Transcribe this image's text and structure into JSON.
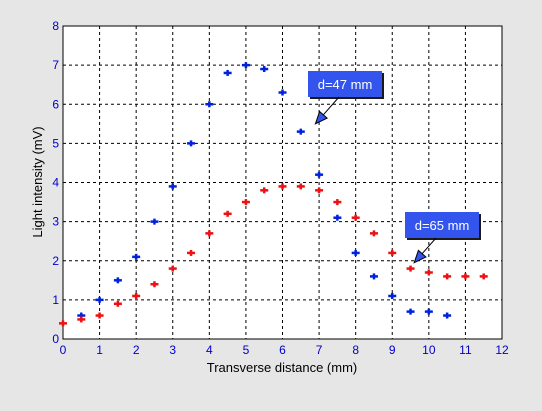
{
  "chart_data": {
    "type": "scatter",
    "xlabel": "Transverse distance (mm)",
    "ylabel": "Light intensity (mV)",
    "xlim": [
      0,
      12
    ],
    "ylim": [
      0,
      8
    ],
    "xticks": [
      "0",
      "1",
      "2",
      "3",
      "4",
      "5",
      "6",
      "7",
      "8",
      "9",
      "10",
      "11",
      "12"
    ],
    "yticks": [
      "0",
      "1",
      "2",
      "3",
      "4",
      "5",
      "6",
      "7",
      "8"
    ],
    "grid": true,
    "series": [
      {
        "color": "#0022dd",
        "marker": "plus",
        "x": [
          0.5,
          1.0,
          1.5,
          2.0,
          2.5,
          3.0,
          3.5,
          4.0,
          4.5,
          5.0,
          5.5,
          6.0,
          6.5,
          7.0,
          7.5,
          8.0,
          8.5,
          9.0,
          9.5,
          10.0,
          10.5
        ],
        "y": [
          0.6,
          1.0,
          1.5,
          2.1,
          3.0,
          3.9,
          5.0,
          6.0,
          6.8,
          7.0,
          6.9,
          6.3,
          5.3,
          4.2,
          3.1,
          2.2,
          1.6,
          1.1,
          0.7,
          0.7,
          0.6
        ]
      },
      {
        "color": "#ee1111",
        "marker": "plus",
        "x": [
          0.0,
          0.5,
          1.0,
          1.5,
          2.0,
          2.5,
          3.0,
          3.5,
          4.0,
          4.5,
          5.0,
          5.5,
          6.0,
          6.5,
          7.0,
          7.5,
          8.0,
          8.5,
          9.0,
          9.5,
          10.0,
          10.5,
          11.0,
          11.5
        ],
        "y": [
          0.4,
          0.5,
          0.6,
          0.9,
          1.1,
          1.4,
          1.8,
          2.2,
          2.7,
          3.2,
          3.5,
          3.8,
          3.9,
          3.9,
          3.8,
          3.5,
          3.1,
          2.7,
          2.2,
          1.8,
          1.7,
          1.6,
          1.6,
          1.6
        ]
      }
    ],
    "annotations": [
      {
        "text": "d=47 mm",
        "box_color": "#3355ee",
        "arrow_to": [
          6.9,
          5.5
        ]
      },
      {
        "text": "d=65 mm",
        "box_color": "#3355ee",
        "arrow_to": [
          9.6,
          1.95
        ]
      }
    ]
  }
}
